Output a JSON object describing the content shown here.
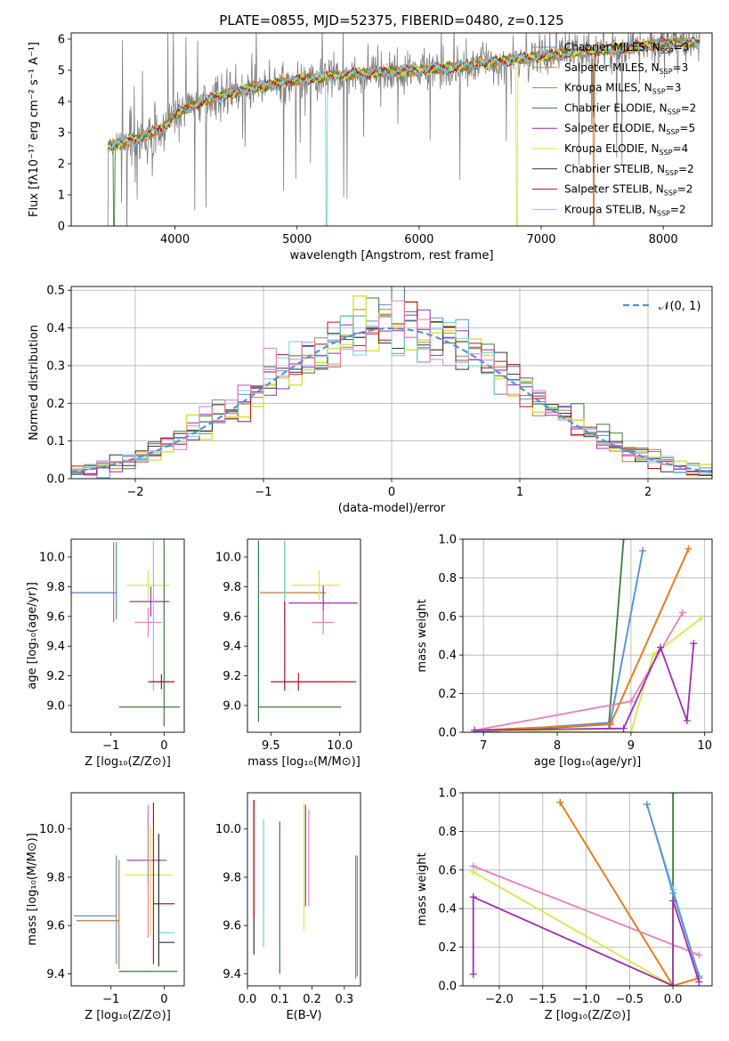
{
  "colors": {
    "Chabrier MILES": "#5b8fd6",
    "Salpeter MILES": "#e97c1b",
    "Kroupa MILES": "#c07a3a",
    "Chabrier ELODIE": "#3f7a3f",
    "Salpeter ELODIE": "#9b2fae",
    "Kroupa ELODIE": "#d6e84a",
    "Chabrier STELIB": "#333333",
    "Salpeter STELIB": "#b4141e",
    "Kroupa STELIB": "#6fd2da",
    "pink": "#e57fbf",
    "normal": "#5b8fd6"
  },
  "chart_data": [
    {
      "id": "spectrum",
      "type": "line",
      "title": "PLATE=0855, MJD=52375, FIBERID=0480, z=0.125",
      "xlabel": "wavelength [Angstrom, rest frame]",
      "ylabel": "Flux [fλ10⁻¹⁷ erg cm⁻² s⁻¹ A⁻¹]",
      "xlim": [
        3150,
        8400
      ],
      "ylim": [
        0,
        6.2
      ],
      "xticks": [
        "4000",
        "5000",
        "6000",
        "7000",
        "8000"
      ],
      "yticks": [
        "0",
        "1",
        "2",
        "3",
        "4",
        "5",
        "6"
      ],
      "grid": false,
      "legend_position": "top-right",
      "legend": [
        {
          "label": "Chabrier MILES, N",
          "sub": "SSP",
          "suffix": "=3"
        },
        {
          "label": "Salpeter MILES, N",
          "sub": "SSP",
          "suffix": "=3"
        },
        {
          "label": "Kroupa MILES, N",
          "sub": "SSP",
          "suffix": "=3"
        },
        {
          "label": "Chabrier ELODIE, N",
          "sub": "SSP",
          "suffix": "=2"
        },
        {
          "label": "Salpeter ELODIE, N",
          "sub": "SSP",
          "suffix": "=5"
        },
        {
          "label": "Kroupa ELODIE, N",
          "sub": "SSP",
          "suffix": "=4"
        },
        {
          "label": "Chabrier STELIB, N",
          "sub": "SSP",
          "suffix": "=2"
        },
        {
          "label": "Salpeter STELIB, N",
          "sub": "SSP",
          "suffix": "=2"
        },
        {
          "label": "Kroupa STELIB, N",
          "sub": "SSP",
          "suffix": "=2"
        }
      ],
      "continuum": {
        "x": [
          3500,
          3700,
          3800,
          3900,
          4000,
          4300,
          4600,
          5000,
          5500,
          6000,
          6500,
          7000,
          7500,
          8000,
          8300
        ],
        "y": [
          2.6,
          2.8,
          3.0,
          3.1,
          3.6,
          4.1,
          4.4,
          4.7,
          4.9,
          5.0,
          5.2,
          5.45,
          5.65,
          5.85,
          5.9
        ]
      },
      "data_x_range": [
        3450,
        8300
      ],
      "model_x_range": [
        3450,
        8300
      ]
    },
    {
      "id": "residuals",
      "type": "step",
      "xlabel": "(data-model)/error",
      "ylabel": "Normed distribution",
      "xlim": [
        -2.5,
        2.5
      ],
      "ylim": [
        0,
        0.51
      ],
      "xticks": [
        "−2",
        "−1",
        "0",
        "1",
        "2"
      ],
      "yticks": [
        "0.0",
        "0.1",
        "0.2",
        "0.3",
        "0.4",
        "0.5"
      ],
      "grid": true,
      "legend_position": "top-right",
      "legend": [
        "𝒩(0, 1)"
      ],
      "bin_width": 0.1
    },
    {
      "id": "age_vs_Z",
      "type": "errorbar",
      "xlabel": "Z [log₁₀(Z/Z⊙)]",
      "ylabel": "age  [log₁₀(age/yr)]",
      "xlim": [
        -1.75,
        0.38
      ],
      "ylim": [
        8.82,
        10.12
      ],
      "xticks": [
        "−1",
        "0"
      ],
      "yticks": [
        "9.0",
        "9.2",
        "9.4",
        "9.6",
        "9.8",
        "10.0"
      ],
      "points": [
        {
          "s": "Kroupa MILES",
          "x": -0.95,
          "xe": [
            0.8,
            0.0
          ],
          "y": 9.76,
          "ye": [
            0.2,
            0.34
          ]
        },
        {
          "s": "Chabrier MILES",
          "x": -0.9,
          "xe": [
            0.85,
            0.0
          ],
          "y": 9.76,
          "ye": [
            0.18,
            0.34
          ]
        },
        {
          "s": "Salpeter ELODIE",
          "x": -0.25,
          "xe": [
            0.4,
            0.35
          ],
          "y": 9.7,
          "ye": [
            0.1,
            0.1
          ]
        },
        {
          "s": "Kroupa ELODIE",
          "x": -0.3,
          "xe": [
            0.4,
            0.4
          ],
          "y": 9.81,
          "ye": [
            0.1,
            0.1
          ]
        },
        {
          "s": "pink",
          "x": -0.3,
          "xe": [
            0.25,
            0.25
          ],
          "y": 9.56,
          "ye": [
            0.1,
            0.1
          ]
        },
        {
          "s": "Chabrier ELODIE",
          "x": 0.0,
          "xe": [
            0.85,
            0.3
          ],
          "y": 8.99,
          "ye": [
            0.13,
            1.15
          ]
        },
        {
          "s": "Kroupa STELIB",
          "x": -0.2,
          "xe": [
            0.05,
            0.3
          ],
          "y": 9.16,
          "ye": [
            0.06,
            0.95
          ]
        },
        {
          "s": "Salpeter STELIB",
          "x": -0.05,
          "xe": [
            0.25,
            0.25
          ],
          "y": 9.16,
          "ye": [
            0.05,
            0.05
          ]
        }
      ]
    },
    {
      "id": "age_vs_mass",
      "type": "errorbar",
      "xlabel": "mass [log₁₀(M/M⊙)]",
      "ylabel": "",
      "xlim": [
        9.33,
        10.15
      ],
      "ylim": [
        8.82,
        10.12
      ],
      "xticks": [
        "9.5",
        "10.0"
      ],
      "yticks": [
        "9.0",
        "9.2",
        "9.4",
        "9.6",
        "9.8",
        "10.0"
      ],
      "points": [
        {
          "s": "Kroupa MILES",
          "x": 9.6,
          "xe": [
            0.18,
            0.3
          ],
          "y": 9.76,
          "ye": [
            0.2,
            0.34
          ]
        },
        {
          "s": "Salpeter ELODIE",
          "x": 9.88,
          "xe": [
            0.25,
            0.25
          ],
          "y": 9.69,
          "ye": [
            0.12,
            0.12
          ]
        },
        {
          "s": "Kroupa ELODIE",
          "x": 9.85,
          "xe": [
            0.2,
            0.15
          ],
          "y": 9.81,
          "ye": [
            0.1,
            0.1
          ]
        },
        {
          "s": "pink",
          "x": 9.88,
          "xe": [
            0.08,
            0.08
          ],
          "y": 9.56,
          "ye": [
            0.08,
            0.08
          ]
        },
        {
          "s": "Chabrier ELODIE",
          "x": 9.41,
          "xe": [
            0.0,
            0.6
          ],
          "y": 8.99,
          "ye": [
            0.1,
            1.12
          ]
        },
        {
          "s": "Kroupa STELIB",
          "x": 9.6,
          "xe": [
            0.0,
            0.4
          ],
          "y": 9.16,
          "ye": [
            0.06,
            0.95
          ]
        },
        {
          "s": "Salpeter STELIB",
          "x": 9.7,
          "xe": [
            0.2,
            0.42
          ],
          "y": 9.16,
          "ye": [
            0.06,
            0.06
          ]
        },
        {
          "s": "Salpeter STELIB",
          "x": 9.6,
          "xe": [
            0.0,
            0.0
          ],
          "y": 9.3,
          "ye": [
            0.2,
            0.4
          ]
        }
      ]
    },
    {
      "id": "weight_vs_age",
      "type": "line",
      "xlabel": "age  [log₁₀(age/yr)]",
      "ylabel": "mass weight",
      "xlim": [
        6.72,
        10.1
      ],
      "ylim": [
        0,
        1
      ],
      "xticks": [
        "7",
        "8",
        "9",
        "10"
      ],
      "yticks": [
        "0.0",
        "0.2",
        "0.4",
        "0.6",
        "0.8",
        "1.0"
      ],
      "grid": true,
      "series": [
        {
          "s": "Chabrier ELODIE",
          "x": [
            6.88,
            8.7,
            8.9
          ],
          "y": [
            0.0,
            0.04,
            1.0
          ]
        },
        {
          "s": "Kroupa STELIB",
          "x": [
            6.88,
            8.72,
            9.16
          ],
          "y": [
            0.0,
            0.05,
            0.94
          ]
        },
        {
          "s": "Chabrier MILES",
          "x": [
            6.88,
            8.72,
            9.16
          ],
          "y": [
            0.0,
            0.05,
            0.94
          ]
        },
        {
          "s": "Kroupa MILES",
          "x": [
            6.88,
            8.72,
            9.78
          ],
          "y": [
            0.01,
            0.04,
            0.95
          ]
        },
        {
          "s": "Salpeter MILES",
          "x": [
            6.88,
            8.72,
            9.78
          ],
          "y": [
            0.01,
            0.04,
            0.95
          ]
        },
        {
          "s": "Kroupa ELODIE",
          "x": [
            6.88,
            9.0,
            9.3,
            9.95
          ],
          "y": [
            0.01,
            0.0,
            0.4,
            0.59
          ]
        },
        {
          "s": "pink",
          "x": [
            6.88,
            9.0,
            9.7
          ],
          "y": [
            0.01,
            0.16,
            0.62
          ]
        },
        {
          "s": "Salpeter ELODIE",
          "x": [
            6.88,
            8.9,
            9.4,
            9.76,
            9.85
          ],
          "y": [
            0.01,
            0.02,
            0.44,
            0.06,
            0.46
          ]
        }
      ]
    },
    {
      "id": "mass_vs_Z",
      "type": "errorbar",
      "xlabel": "Z [log₁₀(Z/Z⊙)]",
      "ylabel": "mass [log₁₀(M/M⊙)]",
      "xlim": [
        -1.75,
        0.38
      ],
      "ylim": [
        9.35,
        10.15
      ],
      "xticks": [
        "−1",
        "0"
      ],
      "yticks": [
        "9.4",
        "9.6",
        "9.8",
        "10.0"
      ],
      "points": [
        {
          "s": "Chabrier MILES",
          "x": -0.9,
          "xe": [
            0.8,
            0.0
          ],
          "y": 9.64,
          "ye": [
            0.2,
            0.25
          ]
        },
        {
          "s": "Kroupa MILES",
          "x": -0.85,
          "xe": [
            0.8,
            0.0
          ],
          "y": 9.62,
          "ye": [
            0.2,
            0.25
          ]
        },
        {
          "s": "Salpeter ELODIE",
          "x": -0.3,
          "xe": [
            0.4,
            0.35
          ],
          "y": 9.87,
          "ye": [
            0.1,
            0.2
          ]
        },
        {
          "s": "Kroupa ELODIE",
          "x": -0.25,
          "xe": [
            0.5,
            0.4
          ],
          "y": 9.81,
          "ye": [
            0.25,
            0.2
          ]
        },
        {
          "s": "Chabrier ELODIE",
          "x": -0.85,
          "xe": [
            0.0,
            1.1
          ],
          "y": 9.41,
          "ye": [
            0.0,
            0.0
          ]
        },
        {
          "s": "Salpeter STELIB",
          "x": -0.2,
          "xe": [
            0.0,
            0.4
          ],
          "y": 9.69,
          "ye": [
            0.25,
            0.42
          ]
        },
        {
          "s": "Kroupa STELIB",
          "x": -0.1,
          "xe": [
            0.0,
            0.3
          ],
          "y": 9.57,
          "ye": [
            0.1,
            0.4
          ]
        },
        {
          "s": "Chabrier STELIB",
          "x": -0.1,
          "xe": [
            0.0,
            0.3
          ],
          "y": 9.53,
          "ye": [
            0.1,
            0.45
          ]
        },
        {
          "s": "pink",
          "x": -0.3,
          "xe": [
            0.0,
            0.0
          ],
          "y": 9.7,
          "ye": [
            0.15,
            0.4
          ]
        }
      ]
    },
    {
      "id": "mass_vs_ebv",
      "type": "errorbar",
      "xlabel": "E(B-V)",
      "ylabel": "",
      "xlim": [
        0.0,
        0.35
      ],
      "ylim": [
        9.35,
        10.15
      ],
      "xticks": [
        "0.0",
        "0.1",
        "0.2",
        "0.3"
      ],
      "yticks": [
        "9.4",
        "9.6",
        "9.8",
        "10.0"
      ],
      "points": [
        {
          "s": "Chabrier STELIB",
          "x": 0.02,
          "y": 9.8,
          "ye": [
            0.32,
            0.32
          ]
        },
        {
          "s": "Salpeter STELIB",
          "x": 0.02,
          "y": 9.88,
          "ye": [
            0.25,
            0.24
          ]
        },
        {
          "s": "Kroupa STELIB",
          "x": 0.05,
          "y": 9.77,
          "ye": [
            0.26,
            0.27
          ]
        },
        {
          "s": "Chabrier ELODIE",
          "x": 0.1,
          "y": 9.7,
          "ye": [
            0.3,
            0.33
          ]
        },
        {
          "s": "Kroupa ELODIE",
          "x": 0.175,
          "y": 9.87,
          "ye": [
            0.29,
            0.24
          ]
        },
        {
          "s": "Salpeter ELODIE",
          "x": 0.18,
          "y": 9.9,
          "ye": [
            0.22,
            0.2
          ]
        },
        {
          "s": "pink",
          "x": 0.19,
          "y": 9.88,
          "ye": [
            0.2,
            0.2
          ]
        },
        {
          "s": "Kroupa MILES",
          "x": 0.335,
          "y": 9.63,
          "ye": [
            0.25,
            0.26
          ]
        },
        {
          "s": "Chabrier MILES",
          "x": 0.34,
          "y": 9.64,
          "ye": [
            0.25,
            0.25
          ]
        }
      ]
    },
    {
      "id": "weight_vs_Z",
      "type": "line",
      "xlabel": "Z [log₁₀(Z/Z⊙)]",
      "ylabel": "mass weight",
      "xlim": [
        -2.42,
        0.45
      ],
      "ylim": [
        0,
        1
      ],
      "xticks": [
        "−2.0",
        "−1.5",
        "−1.0",
        "−0.5",
        "0.0"
      ],
      "yticks": [
        "0.0",
        "0.2",
        "0.4",
        "0.6",
        "0.8",
        "1.0"
      ],
      "grid": true,
      "series": [
        {
          "s": "Chabrier ELODIE",
          "x": [
            0.0,
            0.0
          ],
          "y": [
            0.0,
            1.0
          ]
        },
        {
          "s": "Kroupa MILES",
          "x": [
            -1.3,
            0.0,
            0.3
          ],
          "y": [
            0.95,
            0.0,
            0.04
          ]
        },
        {
          "s": "Salpeter MILES",
          "x": [
            -1.3,
            0.0,
            0.3
          ],
          "y": [
            0.95,
            0.0,
            0.04
          ]
        },
        {
          "s": "Kroupa STELIB",
          "x": [
            -0.3,
            0.0,
            0.3
          ],
          "y": [
            0.94,
            0.5,
            0.05
          ]
        },
        {
          "s": "Chabrier MILES",
          "x": [
            -0.3,
            0.0,
            0.3
          ],
          "y": [
            0.94,
            0.48,
            0.05
          ]
        },
        {
          "s": "pink",
          "x": [
            -2.3,
            0.3
          ],
          "y": [
            0.62,
            0.16
          ]
        },
        {
          "s": "Kroupa ELODIE",
          "x": [
            -2.3,
            0.0,
            0.0
          ],
          "y": [
            0.59,
            0.0,
            0.4
          ]
        },
        {
          "s": "Salpeter ELODIE",
          "x": [
            -2.3,
            -2.3,
            0.0,
            0.0,
            0.3
          ],
          "y": [
            0.06,
            0.46,
            0.0,
            0.44,
            0.02
          ]
        }
      ]
    }
  ]
}
